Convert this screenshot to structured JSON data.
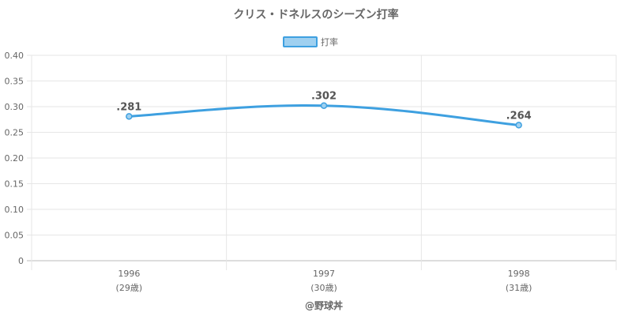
{
  "chart_data": {
    "type": "line",
    "title": "クリス・ドネルスのシーズン打率",
    "categories": [
      "1996",
      "1997",
      "1998"
    ],
    "category_sublabels": [
      "(29歳)",
      "(30歳)",
      "(31歳)"
    ],
    "series": [
      {
        "name": "打率",
        "values": [
          0.281,
          0.302,
          0.264
        ],
        "data_labels": [
          ".281",
          ".302",
          ".264"
        ],
        "color": "#3ea0e0",
        "fill_color": "#9fd0f0"
      }
    ],
    "ylim": [
      0,
      0.4
    ],
    "yticks": [
      "0",
      "0.05",
      "0.10",
      "0.15",
      "0.20",
      "0.25",
      "0.30",
      "0.35",
      "0.40"
    ],
    "ytick_values": [
      0,
      0.05,
      0.1,
      0.15,
      0.2,
      0.25,
      0.3,
      0.35,
      0.4
    ],
    "grid": true,
    "legend_position": "top-center",
    "credit": "@野球丼"
  }
}
